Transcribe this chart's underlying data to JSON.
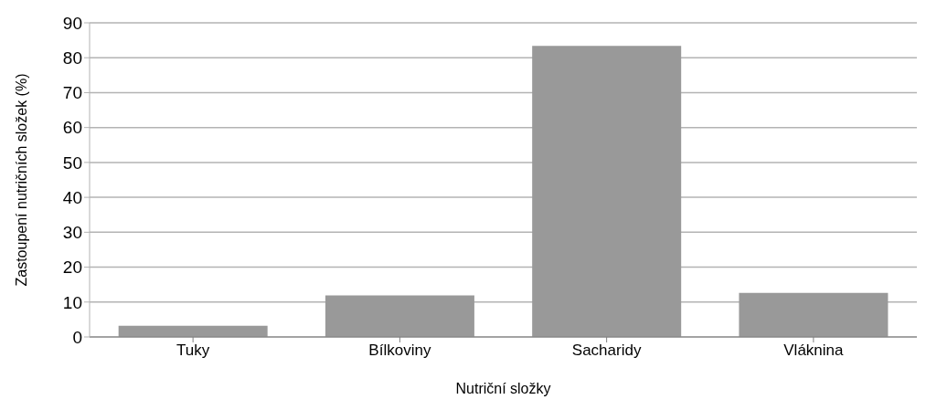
{
  "chart_data": {
    "type": "bar",
    "xlabel": "Nutriční složky",
    "ylabel": "Zastoupení nutričních složek (%)",
    "categories": [
      "Tuky",
      "Bílkoviny",
      "Sacharidy",
      "Vláknina"
    ],
    "values": [
      3.2,
      11.9,
      83.4,
      12.6
    ],
    "color": "#999999",
    "ylim": [
      0,
      90
    ],
    "yticks": [
      0,
      10,
      20,
      30,
      40,
      50,
      60,
      70,
      80,
      90
    ],
    "grid": "y"
  }
}
